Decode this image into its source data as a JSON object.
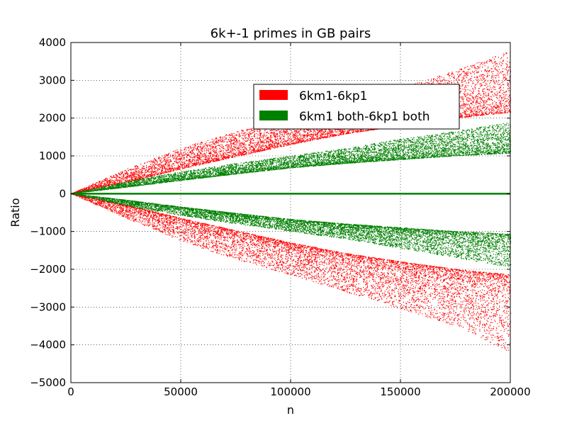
{
  "chart_data": {
    "type": "scatter",
    "title": "6k+-1 primes in GB pairs",
    "xlabel": "n",
    "ylabel": "Ratio",
    "xlim": [
      0,
      200000
    ],
    "ylim": [
      -5000,
      4000
    ],
    "x_ticks": [
      0,
      50000,
      100000,
      150000,
      200000
    ],
    "y_ticks": [
      -5000,
      -4000,
      -3000,
      -2000,
      -1000,
      0,
      1000,
      2000,
      3000,
      4000
    ],
    "x_tick_labels": [
      "0",
      "50000",
      "100000",
      "150000",
      "200000"
    ],
    "y_tick_labels": [
      "−5000",
      "−4000",
      "−3000",
      "−2000",
      "−1000",
      "0",
      "1000",
      "2000",
      "3000",
      "4000"
    ],
    "grid": true,
    "grid_style": "dotted",
    "legend_position": "upper-right",
    "series": [
      {
        "name": "6km1-6kp1",
        "color": "#ff0000",
        "envelope": {
          "x": [
            0,
            25000,
            50000,
            75000,
            100000,
            125000,
            150000,
            175000,
            200000
          ],
          "upper_min": [
            0,
            300,
            650,
            980,
            1300,
            1580,
            1800,
            2000,
            2150
          ],
          "upper_max": [
            0,
            650,
            1200,
            1650,
            2000,
            2350,
            2800,
            3250,
            3800
          ],
          "lower_min": [
            0,
            -300,
            -650,
            -980,
            -1300,
            -1580,
            -1800,
            -2000,
            -2150
          ],
          "lower_max": [
            0,
            -650,
            -1250,
            -1750,
            -2150,
            -2600,
            -3050,
            -3500,
            -4200
          ]
        }
      },
      {
        "name": "6km1 both-6kp1 both",
        "color": "#008000",
        "envelope": {
          "x": [
            0,
            25000,
            50000,
            75000,
            100000,
            125000,
            150000,
            175000,
            200000
          ],
          "upper_min": [
            0,
            170,
            350,
            520,
            680,
            800,
            900,
            1000,
            1070
          ],
          "upper_max": [
            0,
            320,
            580,
            800,
            1000,
            1200,
            1450,
            1650,
            1900
          ],
          "lower_min": [
            0,
            -170,
            -350,
            -520,
            -680,
            -800,
            -900,
            -1000,
            -1070
          ],
          "lower_max": [
            0,
            -320,
            -580,
            -800,
            -1000,
            -1200,
            -1450,
            -1700,
            -1950
          ]
        }
      }
    ],
    "zero_line_color": "#008000"
  }
}
